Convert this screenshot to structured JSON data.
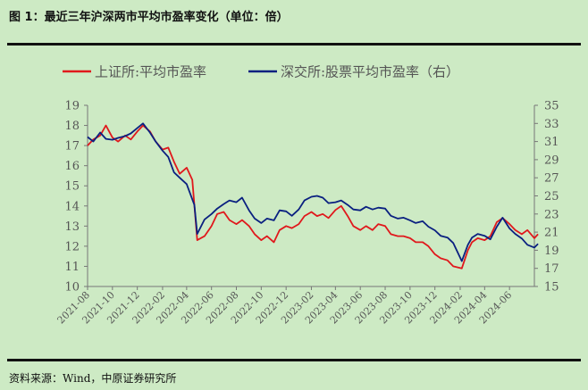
{
  "figure": {
    "title": "图 1：最近三年沪深两市平均市盈率变化（单位：倍）",
    "source": "资料来源：Wind，中原证券研究所"
  },
  "colors": {
    "background": "#cdeac4",
    "series_sh": "#e0181c",
    "series_sz": "#0a2080"
  },
  "chart_data": {
    "type": "line",
    "title": "",
    "legend_position": "top",
    "grid": false,
    "x_ticks": [
      "2021-08",
      "2021-10",
      "2021-12",
      "2022-02",
      "2022-04",
      "2022-06",
      "2022-08",
      "2022-10",
      "2022-12",
      "2023-02",
      "2023-04",
      "2023-06",
      "2023-08",
      "2023-10",
      "2023-12",
      "2024-02",
      "2024-04",
      "2024-06"
    ],
    "x_range": [
      "2021-08",
      "2024-08"
    ],
    "y_left": {
      "min": 10,
      "max": 19,
      "ticks": [
        "10",
        "11",
        "12",
        "13",
        "14",
        "15",
        "16",
        "17",
        "18",
        "19"
      ]
    },
    "y_right": {
      "min": 15,
      "max": 35,
      "ticks": [
        "15",
        "17",
        "19",
        "21",
        "23",
        "25",
        "27",
        "29",
        "31",
        "33",
        "35"
      ]
    },
    "series": [
      {
        "name": "上证所:平均市盈率",
        "axis": "left",
        "points": [
          [
            "2021-08-01",
            17.0
          ],
          [
            "2021-08-15",
            17.3
          ],
          [
            "2021-09-01",
            17.5
          ],
          [
            "2021-09-15",
            18.0
          ],
          [
            "2021-10-01",
            17.4
          ],
          [
            "2021-10-15",
            17.2
          ],
          [
            "2021-11-01",
            17.5
          ],
          [
            "2021-11-15",
            17.3
          ],
          [
            "2021-12-01",
            17.7
          ],
          [
            "2021-12-15",
            18.0
          ],
          [
            "2022-01-01",
            17.7
          ],
          [
            "2022-01-15",
            17.2
          ],
          [
            "2022-02-01",
            16.8
          ],
          [
            "2022-02-15",
            16.9
          ],
          [
            "2022-03-01",
            16.2
          ],
          [
            "2022-03-15",
            15.6
          ],
          [
            "2022-04-01",
            15.9
          ],
          [
            "2022-04-15",
            15.3
          ],
          [
            "2022-04-27",
            12.3
          ],
          [
            "2022-05-15",
            12.5
          ],
          [
            "2022-06-01",
            13.0
          ],
          [
            "2022-06-15",
            13.6
          ],
          [
            "2022-07-01",
            13.7
          ],
          [
            "2022-07-15",
            13.3
          ],
          [
            "2022-08-01",
            13.1
          ],
          [
            "2022-08-15",
            13.3
          ],
          [
            "2022-09-01",
            13.0
          ],
          [
            "2022-09-15",
            12.6
          ],
          [
            "2022-10-01",
            12.3
          ],
          [
            "2022-10-15",
            12.5
          ],
          [
            "2022-11-01",
            12.2
          ],
          [
            "2022-11-15",
            12.8
          ],
          [
            "2022-12-01",
            13.0
          ],
          [
            "2022-12-15",
            12.9
          ],
          [
            "2023-01-01",
            13.1
          ],
          [
            "2023-01-15",
            13.5
          ],
          [
            "2023-02-01",
            13.7
          ],
          [
            "2023-02-15",
            13.5
          ],
          [
            "2023-03-01",
            13.6
          ],
          [
            "2023-03-15",
            13.4
          ],
          [
            "2023-04-01",
            13.8
          ],
          [
            "2023-04-15",
            14.0
          ],
          [
            "2023-05-01",
            13.5
          ],
          [
            "2023-05-15",
            13.0
          ],
          [
            "2023-06-01",
            12.8
          ],
          [
            "2023-06-15",
            13.0
          ],
          [
            "2023-07-01",
            12.8
          ],
          [
            "2023-07-15",
            13.1
          ],
          [
            "2023-08-01",
            13.0
          ],
          [
            "2023-08-15",
            12.6
          ],
          [
            "2023-09-01",
            12.5
          ],
          [
            "2023-09-15",
            12.5
          ],
          [
            "2023-10-01",
            12.4
          ],
          [
            "2023-10-15",
            12.2
          ],
          [
            "2023-11-01",
            12.2
          ],
          [
            "2023-11-15",
            12.0
          ],
          [
            "2023-12-01",
            11.6
          ],
          [
            "2023-12-15",
            11.4
          ],
          [
            "2024-01-01",
            11.3
          ],
          [
            "2024-01-15",
            11.0
          ],
          [
            "2024-02-05",
            10.9
          ],
          [
            "2024-02-20",
            11.8
          ],
          [
            "2024-03-01",
            12.2
          ],
          [
            "2024-03-15",
            12.4
          ],
          [
            "2024-04-01",
            12.3
          ],
          [
            "2024-04-15",
            12.5
          ],
          [
            "2024-05-01",
            13.2
          ],
          [
            "2024-05-15",
            13.4
          ],
          [
            "2024-06-01",
            13.1
          ],
          [
            "2024-06-15",
            12.8
          ],
          [
            "2024-07-01",
            12.6
          ],
          [
            "2024-07-15",
            12.8
          ],
          [
            "2024-08-01",
            12.4
          ],
          [
            "2024-08-10",
            12.6
          ]
        ]
      },
      {
        "name": "深交所:股票平均市盈率（右）",
        "axis": "right",
        "points": [
          [
            "2021-08-01",
            31.5
          ],
          [
            "2021-08-15",
            31.0
          ],
          [
            "2021-09-01",
            32.0
          ],
          [
            "2021-09-15",
            31.3
          ],
          [
            "2021-10-01",
            31.2
          ],
          [
            "2021-10-15",
            31.4
          ],
          [
            "2021-11-01",
            31.6
          ],
          [
            "2021-11-15",
            31.9
          ],
          [
            "2021-12-01",
            32.5
          ],
          [
            "2021-12-15",
            33.0
          ],
          [
            "2022-01-01",
            32.0
          ],
          [
            "2022-01-15",
            31.0
          ],
          [
            "2022-02-01",
            30.0
          ],
          [
            "2022-02-15",
            29.3
          ],
          [
            "2022-03-01",
            27.6
          ],
          [
            "2022-03-15",
            27.0
          ],
          [
            "2022-04-01",
            26.3
          ],
          [
            "2022-04-20",
            24.0
          ],
          [
            "2022-04-27",
            20.8
          ],
          [
            "2022-05-15",
            22.4
          ],
          [
            "2022-06-01",
            23.0
          ],
          [
            "2022-06-15",
            23.6
          ],
          [
            "2022-07-01",
            24.1
          ],
          [
            "2022-07-15",
            24.5
          ],
          [
            "2022-08-01",
            24.3
          ],
          [
            "2022-08-15",
            24.8
          ],
          [
            "2022-09-01",
            23.4
          ],
          [
            "2022-09-15",
            22.5
          ],
          [
            "2022-10-01",
            22.0
          ],
          [
            "2022-10-15",
            22.5
          ],
          [
            "2022-11-01",
            22.3
          ],
          [
            "2022-11-15",
            23.4
          ],
          [
            "2022-12-01",
            23.3
          ],
          [
            "2022-12-15",
            22.8
          ],
          [
            "2023-01-01",
            23.5
          ],
          [
            "2023-01-15",
            24.5
          ],
          [
            "2023-02-01",
            24.9
          ],
          [
            "2023-02-15",
            25.0
          ],
          [
            "2023-03-01",
            24.8
          ],
          [
            "2023-03-15",
            24.2
          ],
          [
            "2023-04-01",
            24.3
          ],
          [
            "2023-04-15",
            24.5
          ],
          [
            "2023-05-01",
            24.0
          ],
          [
            "2023-05-15",
            23.5
          ],
          [
            "2023-06-01",
            23.4
          ],
          [
            "2023-06-15",
            23.8
          ],
          [
            "2023-07-01",
            23.5
          ],
          [
            "2023-07-15",
            23.7
          ],
          [
            "2023-08-01",
            23.6
          ],
          [
            "2023-08-15",
            22.8
          ],
          [
            "2023-09-01",
            22.5
          ],
          [
            "2023-09-15",
            22.6
          ],
          [
            "2023-10-01",
            22.3
          ],
          [
            "2023-10-15",
            22.0
          ],
          [
            "2023-11-01",
            22.2
          ],
          [
            "2023-11-15",
            21.6
          ],
          [
            "2023-12-01",
            21.2
          ],
          [
            "2023-12-15",
            20.6
          ],
          [
            "2024-01-01",
            20.4
          ],
          [
            "2024-01-15",
            19.8
          ],
          [
            "2024-02-05",
            17.8
          ],
          [
            "2024-02-20",
            19.6
          ],
          [
            "2024-03-01",
            20.4
          ],
          [
            "2024-03-15",
            20.8
          ],
          [
            "2024-04-01",
            20.6
          ],
          [
            "2024-04-15",
            20.2
          ],
          [
            "2024-05-01",
            21.6
          ],
          [
            "2024-05-15",
            22.6
          ],
          [
            "2024-06-01",
            21.4
          ],
          [
            "2024-06-15",
            20.8
          ],
          [
            "2024-07-01",
            20.3
          ],
          [
            "2024-07-15",
            19.6
          ],
          [
            "2024-08-01",
            19.3
          ],
          [
            "2024-08-10",
            19.7
          ]
        ]
      }
    ]
  }
}
